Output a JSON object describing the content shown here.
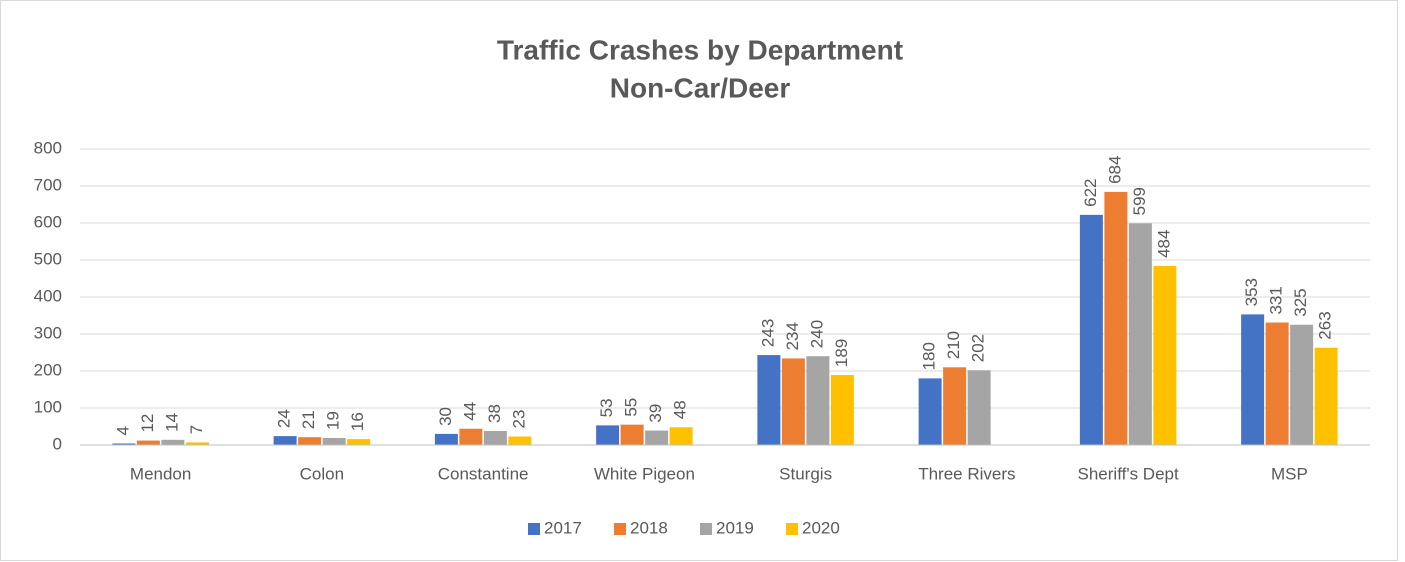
{
  "chart_data": {
    "type": "bar",
    "title": "Traffic Crashes by Department",
    "subtitle": "Non-Car/Deer",
    "categories": [
      "Mendon",
      "Colon",
      "Constantine",
      "White Pigeon",
      "Sturgis",
      "Three Rivers",
      "Sheriff's Dept",
      "MSP"
    ],
    "series": [
      {
        "name": "2017",
        "color": "#4472c4",
        "values": [
          4,
          24,
          30,
          53,
          243,
          180,
          622,
          353
        ]
      },
      {
        "name": "2018",
        "color": "#ed7d31",
        "values": [
          12,
          21,
          44,
          55,
          234,
          210,
          684,
          331
        ]
      },
      {
        "name": "2019",
        "color": "#a5a5a5",
        "values": [
          14,
          19,
          38,
          39,
          240,
          202,
          599,
          325
        ]
      },
      {
        "name": "2020",
        "color": "#ffc000",
        "values": [
          7,
          16,
          23,
          48,
          189,
          null,
          484,
          263
        ]
      }
    ],
    "ylim": [
      0,
      800
    ],
    "yticks": [
      0,
      100,
      200,
      300,
      400,
      500,
      600,
      700,
      800
    ],
    "grid": true,
    "legend": "bottom",
    "data_labels": true
  }
}
